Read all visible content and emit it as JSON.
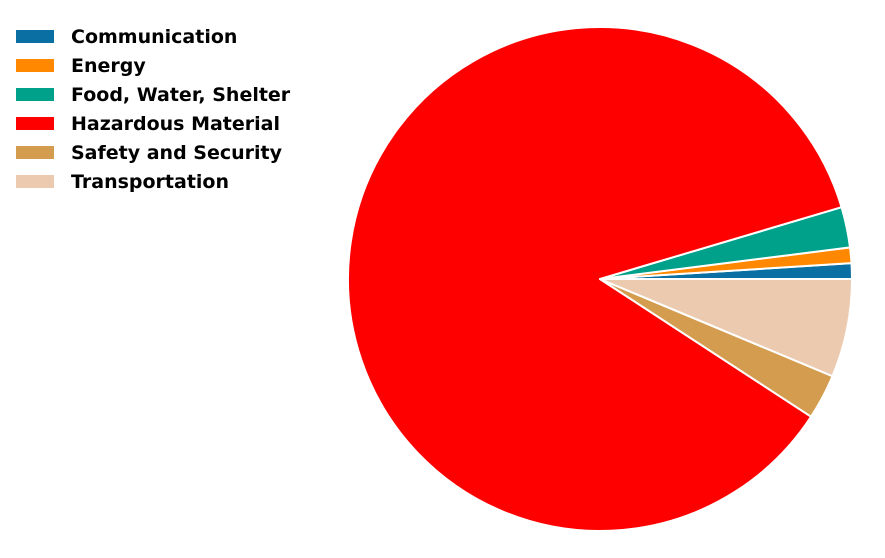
{
  "chart_data": {
    "type": "pie",
    "title": "",
    "start_angle_deg": 0,
    "direction": "counterclockwise",
    "legend_position": "top-left",
    "slices": [
      {
        "label": "Communication",
        "value": 1.0,
        "color": "#0a6fa3"
      },
      {
        "label": "Energy",
        "value": 1.0,
        "color": "#ff8800"
      },
      {
        "label": "Food, Water, Shelter",
        "value": 2.6,
        "color": "#00a18b"
      },
      {
        "label": "Hazardous Material",
        "value": 86.2,
        "color": "#ff0000"
      },
      {
        "label": "Safety and Security",
        "value": 2.9,
        "color": "#d49c4f"
      },
      {
        "label": "Transportation",
        "value": 6.3,
        "color": "#ebcab0"
      }
    ]
  }
}
